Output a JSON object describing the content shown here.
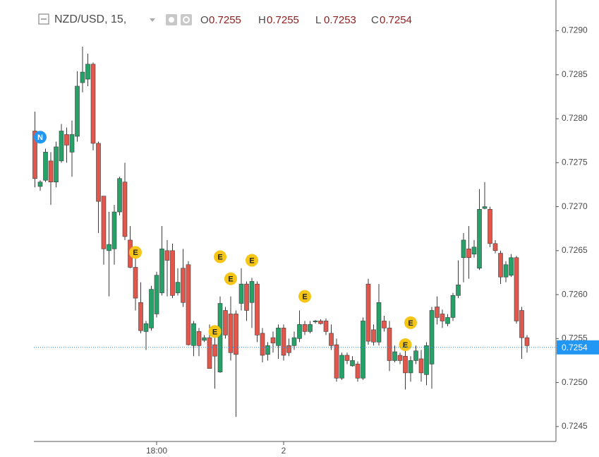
{
  "chart_data": {
    "type": "candlestick",
    "title": "NZD/USD, 15,",
    "ohlc_legend": [
      {
        "label": "O",
        "value": 0.7255
      },
      {
        "label": "H",
        "value": 0.7255
      },
      {
        "label": "L",
        "value": 0.7253
      },
      {
        "label": "C",
        "value": 0.7254
      }
    ],
    "up_color": "#26a269",
    "down_color": "#e2574c",
    "wick_color": "#3a3a3a",
    "ylim": [
      0.72433,
      0.72935
    ],
    "yticks": [
      0.7245,
      {
        "value": 0.725,
        "label": "0.7250"
      },
      0.7255,
      {
        "value": 0.726,
        "label": "0.7260"
      },
      0.7265,
      {
        "value": 0.727,
        "label": "0.7270"
      },
      0.7275,
      {
        "value": 0.728,
        "label": "0.7280"
      },
      0.7285,
      {
        "value": 0.729,
        "label": "0.7290"
      }
    ],
    "last_price": 0.7254,
    "last_price_color": "#2196f3",
    "categories": [
      null,
      null,
      null,
      null,
      null,
      null,
      null,
      null,
      null,
      null,
      null,
      null,
      null,
      null,
      null,
      null,
      null,
      null,
      null,
      null,
      null,
      null,
      null,
      "18:00",
      null,
      null,
      null,
      null,
      null,
      null,
      null,
      null,
      null,
      null,
      null,
      null,
      null,
      null,
      null,
      null,
      null,
      null,
      null,
      null,
      null,
      null,
      null,
      "2",
      null,
      null,
      null,
      null,
      null,
      null,
      null,
      null,
      null,
      null,
      null,
      null,
      null,
      null,
      null,
      null,
      null,
      null,
      null,
      null,
      null,
      null,
      null,
      null,
      null,
      null,
      null,
      null,
      null,
      null,
      null,
      null,
      null,
      null,
      null,
      null,
      null,
      null,
      null,
      null,
      null,
      null,
      null,
      null,
      null,
      null
    ],
    "open": [
      0.72786,
      0.72723,
      0.7273,
      0.72752,
      0.72728,
      0.72752,
      0.72782,
      0.72762,
      0.7278,
      0.72841,
      0.72845,
      0.72862,
      0.72772,
      0.72712,
      0.7265,
      0.72652,
      0.72694,
      0.72728,
      0.72662,
      0.72631,
      0.72591,
      0.72558,
      0.72562,
      0.72578,
      0.72602,
      0.7265,
      0.7265,
      0.72602,
      0.7263,
      0.72634,
      0.72542,
      0.72558,
      0.72548,
      0.72551,
      0.72543,
      0.72512,
      0.72582,
      0.72578,
      0.72578,
      0.7259,
      0.72612,
      0.72591,
      0.72612,
      0.72556,
      0.72532,
      0.72551,
      0.72542,
      0.72562,
      0.72542,
      0.72542,
      0.7255,
      0.72566,
      0.72558,
      0.72569,
      0.7257,
      0.7257,
      0.72556,
      0.72543,
      0.72505,
      0.72531,
      0.72519,
      0.72521,
      0.72505,
      0.72612,
      0.7256,
      0.72546,
      0.7257,
      0.72562,
      0.72525,
      0.72531,
      0.7253,
      0.72511,
      0.72525,
      0.72527,
      0.72509,
      0.72521,
      0.72586,
      0.72578,
      0.72567,
      0.72574,
      0.72599,
      0.72642,
      0.72652,
      0.72646,
      0.7263,
      0.72698,
      0.72697,
      0.72658,
      0.72647,
      0.7262,
      0.72622,
      0.72642,
      0.72582,
      0.72551
    ],
    "high": [
      0.72808,
      0.7273,
      0.72766,
      0.72762,
      0.72774,
      0.72794,
      0.7279,
      0.72798,
      0.72854,
      0.72882,
      0.72874,
      0.72864,
      0.72774,
      0.72712,
      0.72694,
      0.72702,
      0.72734,
      0.7275,
      0.72678,
      0.72642,
      0.72614,
      0.7257,
      0.7261,
      0.72626,
      0.72678,
      0.72662,
      0.72658,
      0.7263,
      0.72652,
      0.72638,
      0.7257,
      0.72562,
      0.72554,
      0.72566,
      0.72551,
      0.72598,
      0.72586,
      0.72598,
      0.72582,
      0.7263,
      0.72615,
      0.72619,
      0.72615,
      0.72562,
      0.72546,
      0.72558,
      0.72566,
      0.72566,
      0.7255,
      0.72558,
      0.72582,
      0.7257,
      0.7257,
      0.72571,
      0.72572,
      0.72573,
      0.72566,
      0.7255,
      0.72534,
      0.72534,
      0.7253,
      0.72524,
      0.72574,
      0.72618,
      0.72566,
      0.72612,
      0.72576,
      0.7257,
      0.72542,
      0.72534,
      0.72537,
      0.7253,
      0.72542,
      0.72537,
      0.72546,
      0.72586,
      0.72598,
      0.72583,
      0.72578,
      0.72602,
      0.72639,
      0.7267,
      0.72678,
      0.72662,
      0.7272,
      0.72728,
      0.727,
      0.72662,
      0.7265,
      0.72638,
      0.72646,
      0.72644,
      0.72586,
      0.72554
    ],
    "low": [
      0.72722,
      0.72718,
      0.72728,
      0.72702,
      0.72722,
      0.7275,
      0.7275,
      0.72734,
      0.72774,
      0.7283,
      0.72837,
      0.72764,
      0.7267,
      0.72634,
      0.72598,
      0.72634,
      0.7269,
      0.72662,
      0.7263,
      0.72582,
      0.72556,
      0.72537,
      0.72559,
      0.72574,
      0.72599,
      0.72598,
      0.72596,
      0.72599,
      0.72586,
      0.72542,
      0.7253,
      0.7253,
      0.72546,
      0.72516,
      0.72493,
      0.72511,
      0.7255,
      0.72525,
      0.72461,
      0.72582,
      0.7257,
      0.72562,
      0.72546,
      0.72523,
      0.72525,
      0.72534,
      0.72527,
      0.72525,
      0.7253,
      0.72537,
      0.72546,
      0.72554,
      0.72556,
      0.72567,
      0.72566,
      0.72554,
      0.72537,
      0.72501,
      0.72503,
      0.72521,
      0.72518,
      0.72501,
      0.72503,
      0.72543,
      0.72542,
      0.72542,
      0.72558,
      0.72513,
      0.72523,
      0.72521,
      0.72492,
      0.72501,
      0.72521,
      0.72501,
      0.72497,
      0.72493,
      0.72566,
      0.72562,
      0.72564,
      0.7257,
      0.72596,
      0.72614,
      0.72618,
      0.72642,
      0.72628,
      0.72697,
      0.72654,
      0.72647,
      0.72612,
      0.72614,
      0.7262,
      0.72567,
      0.72527,
      0.72534
    ],
    "close": [
      0.72732,
      0.72728,
      0.72762,
      0.72728,
      0.72768,
      0.72786,
      0.7277,
      0.72782,
      0.72837,
      0.72853,
      0.72862,
      0.72772,
      0.72706,
      0.72652,
      0.72657,
      0.72694,
      0.72732,
      0.72666,
      0.72631,
      0.72596,
      0.72559,
      0.72567,
      0.72606,
      0.72622,
      0.72652,
      0.72639,
      0.72599,
      0.72614,
      0.72591,
      0.72543,
      0.72567,
      0.72542,
      0.72551,
      0.72516,
      0.7253,
      0.7259,
      0.72554,
      0.72534,
      0.72532,
      0.72612,
      0.72582,
      0.72615,
      0.72554,
      0.72531,
      0.72542,
      0.72545,
      0.72562,
      0.72531,
      0.72534,
      0.72551,
      0.72566,
      0.72558,
      0.72566,
      0.7257,
      0.72567,
      0.72558,
      0.72542,
      0.72505,
      0.72531,
      0.72525,
      0.72525,
      0.72505,
      0.7257,
      0.72547,
      0.72546,
      0.72591,
      0.72562,
      0.72525,
      0.72535,
      0.72525,
      0.72511,
      0.72525,
      0.72536,
      0.72511,
      0.72542,
      0.72582,
      0.72574,
      0.7257,
      0.72574,
      0.72599,
      0.72611,
      0.72662,
      0.72642,
      0.72654,
      0.72697,
      0.727,
      0.72658,
      0.7265,
      0.7262,
      0.72634,
      0.72642,
      0.7257,
      0.72551,
      0.72542
    ],
    "events": [
      {
        "label": "N",
        "index": 1,
        "price": 0.72779,
        "color": "#2196f3"
      },
      {
        "label": "E",
        "index": 19,
        "price": 0.72648,
        "color": "#f5c518"
      },
      {
        "label": "E",
        "index": 34,
        "price": 0.72558,
        "color": "#f5c518"
      },
      {
        "label": "E",
        "index": 35,
        "price": 0.72643,
        "color": "#f5c518"
      },
      {
        "label": "E",
        "index": 37,
        "price": 0.72618,
        "color": "#f5c518"
      },
      {
        "label": "E",
        "index": 41,
        "price": 0.72639,
        "color": "#f5c518"
      },
      {
        "label": "E",
        "index": 51,
        "price": 0.72598,
        "color": "#f5c518"
      },
      {
        "label": "E",
        "index": 70,
        "price": 0.72543,
        "color": "#f5c518"
      },
      {
        "label": "E",
        "index": 71,
        "price": 0.72568,
        "color": "#f5c518"
      }
    ]
  }
}
